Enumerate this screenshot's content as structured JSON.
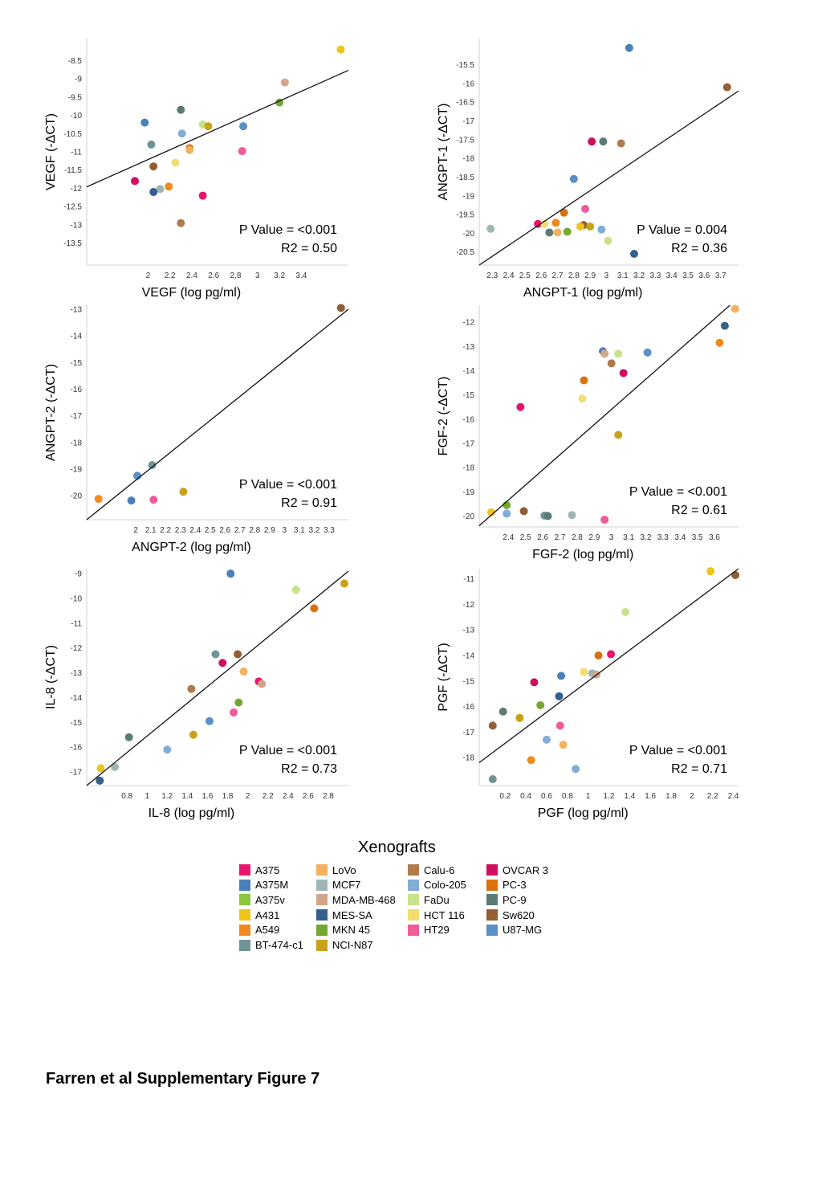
{
  "legend": {
    "title": "Xenografts",
    "items": [
      {
        "name": "A375",
        "color": "#e8156e"
      },
      {
        "name": "A375M",
        "color": "#4a80b8"
      },
      {
        "name": "A375v",
        "color": "#8cc63f"
      },
      {
        "name": "A431",
        "color": "#f0c419"
      },
      {
        "name": "A549",
        "color": "#f08a1e"
      },
      {
        "name": "BT-474-c1",
        "color": "#6e9496"
      },
      {
        "name": "LoVo",
        "color": "#f5b160"
      },
      {
        "name": "MCF7",
        "color": "#9eb7b5"
      },
      {
        "name": "MDA-MB-468",
        "color": "#d3a588"
      },
      {
        "name": "MES-SA",
        "color": "#35608e"
      },
      {
        "name": "MKN 45",
        "color": "#75a830"
      },
      {
        "name": "NCI-N87",
        "color": "#c9a21a"
      },
      {
        "name": "Calu-6",
        "color": "#b07a4a"
      },
      {
        "name": "Colo-205",
        "color": "#82acd6"
      },
      {
        "name": "FaDu",
        "color": "#c8e28a"
      },
      {
        "name": "HCT 116",
        "color": "#f3dc70"
      },
      {
        "name": "HT29",
        "color": "#ef5a9a"
      },
      {
        "name": "OVCAR 3",
        "color": "#cc0f5e"
      },
      {
        "name": "PC-3",
        "color": "#d9720e"
      },
      {
        "name": "PC-9",
        "color": "#5c7a76"
      },
      {
        "name": "Sw620",
        "color": "#935e32"
      },
      {
        "name": "U87-MG",
        "color": "#5b8fc5"
      }
    ]
  },
  "caption": "Farren et al Supplementary Figure 7",
  "chart_data": [
    {
      "type": "scatter",
      "xlabel": "VEGF (log pg/ml)",
      "ylabel": "VEGF (-ΔCT)",
      "xlim": [
        1.44,
        3.83
      ],
      "ylim": [
        -14.1,
        -7.9
      ],
      "xticks": [
        "2",
        "2.2",
        "2.4",
        "2.6",
        "2.8",
        "3",
        "3.2",
        "3.4"
      ],
      "xtick_values": [
        2,
        2.2,
        2.4,
        2.6,
        2.8,
        3,
        3.2,
        3.4
      ],
      "yticks": [
        "-8.5",
        "-9",
        "-9.5",
        "-10",
        "-10.5",
        "-11",
        "-11.5",
        "-12",
        "-12.5",
        "-13",
        "-13.5"
      ],
      "ytick_values": [
        -8.5,
        -9,
        -9.5,
        -10,
        -10.5,
        -11,
        -11.5,
        -12,
        -12.5,
        -13,
        -13.5
      ],
      "fit": {
        "x": [
          1.44,
          3.83
        ],
        "y": [
          -11.96,
          -8.77
        ]
      },
      "stats": {
        "p": "P Value = <0.001",
        "r2": "R2 = 0.50"
      },
      "points": [
        {
          "x": 3.76,
          "y": -8.2,
          "c": "#f0c419"
        },
        {
          "x": 3.25,
          "y": -9.1,
          "c": "#d3a588"
        },
        {
          "x": 3.2,
          "y": -9.65,
          "c": "#75a830"
        },
        {
          "x": 2.3,
          "y": -9.85,
          "c": "#5c7a76"
        },
        {
          "x": 1.97,
          "y": -10.2,
          "c": "#4a80b8"
        },
        {
          "x": 2.5,
          "y": -10.25,
          "c": "#c8e28a"
        },
        {
          "x": 2.55,
          "y": -10.3,
          "c": "#c9a21a"
        },
        {
          "x": 2.87,
          "y": -10.3,
          "c": "#5b8fc5"
        },
        {
          "x": 2.31,
          "y": -10.5,
          "c": "#82acd6"
        },
        {
          "x": 2.03,
          "y": -10.8,
          "c": "#6e9496"
        },
        {
          "x": 2.38,
          "y": -10.9,
          "c": "#d9720e"
        },
        {
          "x": 2.38,
          "y": -10.95,
          "c": "#f5b160"
        },
        {
          "x": 2.86,
          "y": -10.98,
          "c": "#ef5a9a"
        },
        {
          "x": 2.25,
          "y": -11.3,
          "c": "#f3dc70"
        },
        {
          "x": 2.05,
          "y": -11.4,
          "c": "#935e32"
        },
        {
          "x": 1.88,
          "y": -11.8,
          "c": "#cc0f5e"
        },
        {
          "x": 2.19,
          "y": -11.95,
          "c": "#f08a1e"
        },
        {
          "x": 2.11,
          "y": -12.02,
          "c": "#9eb7b5"
        },
        {
          "x": 2.05,
          "y": -12.1,
          "c": "#35608e"
        },
        {
          "x": 2.5,
          "y": -12.2,
          "c": "#e8156e"
        },
        {
          "x": 2.3,
          "y": -12.95,
          "c": "#b07a4a"
        }
      ]
    },
    {
      "type": "scatter",
      "xlabel": "ANGPT-1 (log pg/ml)",
      "ylabel": "ANGPT-1 (-ΔCT)",
      "xlim": [
        2.22,
        3.81
      ],
      "ylim": [
        -20.85,
        -14.8
      ],
      "xticks": [
        "2.3",
        "2.4",
        "2.5",
        "2.6",
        "2.7",
        "2.8",
        "2.9",
        "3",
        "3.1",
        "3.2",
        "3.3",
        "3.4",
        "3.5",
        "3.6",
        "3.7"
      ],
      "xtick_values": [
        2.3,
        2.4,
        2.5,
        2.6,
        2.7,
        2.8,
        2.9,
        3.0,
        3.1,
        3.2,
        3.3,
        3.4,
        3.5,
        3.6,
        3.7
      ],
      "yticks": [
        "-15.5",
        "-16",
        "-16.5",
        "-17",
        "-17.5",
        "-18",
        "-18.5",
        "-19",
        "-19.5",
        "-20",
        "-20.5"
      ],
      "ytick_values": [
        -15.5,
        -16,
        -16.5,
        -17,
        -17.5,
        -18,
        -18.5,
        -19,
        -19.5,
        -20,
        -20.5
      ],
      "fit": {
        "x": [
          2.22,
          3.81
        ],
        "y": [
          -20.85,
          -16.2
        ]
      },
      "stats": {
        "p": "P Value = 0.004",
        "r2": "R2 = 0.36"
      },
      "points": [
        {
          "x": 3.14,
          "y": -15.05,
          "c": "#4a80b8"
        },
        {
          "x": 3.74,
          "y": -16.1,
          "c": "#935e32"
        },
        {
          "x": 2.91,
          "y": -17.55,
          "c": "#cc0f5e"
        },
        {
          "x": 2.98,
          "y": -17.55,
          "c": "#5c7a76"
        },
        {
          "x": 3.09,
          "y": -17.6,
          "c": "#b07a4a"
        },
        {
          "x": 2.8,
          "y": -18.55,
          "c": "#5b8fc5"
        },
        {
          "x": 2.87,
          "y": -19.35,
          "c": "#ef5a9a"
        },
        {
          "x": 2.74,
          "y": -19.45,
          "c": "#d9720e"
        },
        {
          "x": 2.58,
          "y": -19.75,
          "c": "#e8156e"
        },
        {
          "x": 2.62,
          "y": -19.75,
          "c": "#f3dc70"
        },
        {
          "x": 2.69,
          "y": -19.72,
          "c": "#f08a1e"
        },
        {
          "x": 2.86,
          "y": -19.78,
          "c": "#935e32"
        },
        {
          "x": 2.84,
          "y": -19.82,
          "c": "#f0c419"
        },
        {
          "x": 2.9,
          "y": -19.82,
          "c": "#c9a21a"
        },
        {
          "x": 2.29,
          "y": -19.88,
          "c": "#9eb7b5"
        },
        {
          "x": 2.97,
          "y": -19.9,
          "c": "#82acd6"
        },
        {
          "x": 2.65,
          "y": -19.98,
          "c": "#5c7a76"
        },
        {
          "x": 2.7,
          "y": -19.98,
          "c": "#f5b160"
        },
        {
          "x": 2.76,
          "y": -19.96,
          "c": "#75a830"
        },
        {
          "x": 3.01,
          "y": -20.2,
          "c": "#c8e28a"
        },
        {
          "x": 3.17,
          "y": -20.55,
          "c": "#35608e"
        }
      ]
    },
    {
      "type": "scatter",
      "xlabel": "ANGPT-2 (log pg/ml)",
      "ylabel": "ANGPT-2 (-ΔCT)",
      "xlim": [
        1.67,
        3.43
      ],
      "ylim": [
        -20.9,
        -12.85
      ],
      "xticks": [
        "2",
        "2.1",
        "2.2",
        "2.3",
        "2.4",
        "2.5",
        "2.6",
        "2.7",
        "2.8",
        "2.9",
        "3",
        "3.1",
        "3.2",
        "3.3"
      ],
      "xtick_values": [
        2.0,
        2.1,
        2.2,
        2.3,
        2.4,
        2.5,
        2.6,
        2.7,
        2.8,
        2.9,
        3.0,
        3.1,
        3.2,
        3.3
      ],
      "yticks": [
        "-13",
        "-14",
        "-15",
        "-16",
        "-17",
        "-18",
        "-19",
        "-20"
      ],
      "ytick_values": [
        -13,
        -14,
        -15,
        -16,
        -17,
        -18,
        -19,
        -20
      ],
      "fit": {
        "x": [
          1.67,
          3.43
        ],
        "y": [
          -20.9,
          -13.0
        ]
      },
      "stats": {
        "p": "P Value = <0.001",
        "r2": "R2 = 0.91"
      },
      "points": [
        {
          "x": 3.38,
          "y": -12.95,
          "c": "#935e32"
        },
        {
          "x": 2.11,
          "y": -18.85,
          "c": "#6e9496"
        },
        {
          "x": 2.01,
          "y": -19.25,
          "c": "#5b8fc5"
        },
        {
          "x": 2.32,
          "y": -19.85,
          "c": "#c9a21a"
        },
        {
          "x": 1.75,
          "y": -20.12,
          "c": "#f08a1e"
        },
        {
          "x": 1.97,
          "y": -20.18,
          "c": "#4a80b8"
        },
        {
          "x": 2.12,
          "y": -20.15,
          "c": "#ef5a9a"
        }
      ]
    },
    {
      "type": "scatter",
      "xlabel": "FGF-2 (log pg/ml)",
      "ylabel": "FGF-2 (-ΔCT)",
      "xlim": [
        2.23,
        3.74
      ],
      "ylim": [
        -20.45,
        -11.3
      ],
      "xticks": [
        "2.4",
        "2.5",
        "2.6",
        "2.7",
        "2.8",
        "2.9",
        "3",
        "3.1",
        "3.2",
        "3.3",
        "3.4",
        "3.5",
        "3.6"
      ],
      "xtick_values": [
        2.4,
        2.5,
        2.6,
        2.7,
        2.8,
        2.9,
        3.0,
        3.1,
        3.2,
        3.3,
        3.4,
        3.5,
        3.6
      ],
      "yticks": [
        "-12",
        "-13",
        "-14",
        "-15",
        "-16",
        "-17",
        "-18",
        "-19",
        "-20"
      ],
      "ytick_values": [
        -12,
        -13,
        -14,
        -15,
        -16,
        -17,
        -18,
        -19,
        -20
      ],
      "fit": {
        "x": [
          2.23,
          3.69
        ],
        "y": [
          -20.4,
          -11.3
        ]
      },
      "stats": {
        "p": "P Value = <0.001",
        "r2": "R2 = 0.61"
      },
      "points": [
        {
          "x": 3.72,
          "y": -11.45,
          "c": "#f5b160"
        },
        {
          "x": 3.66,
          "y": -12.15,
          "c": "#35608e"
        },
        {
          "x": 3.63,
          "y": -12.85,
          "c": "#f08a1e"
        },
        {
          "x": 2.95,
          "y": -13.2,
          "c": "#4a80b8"
        },
        {
          "x": 2.96,
          "y": -13.3,
          "c": "#d3a588"
        },
        {
          "x": 3.04,
          "y": -13.3,
          "c": "#c8e28a"
        },
        {
          "x": 3.21,
          "y": -13.25,
          "c": "#5b8fc5"
        },
        {
          "x": 3.0,
          "y": -13.7,
          "c": "#b07a4a"
        },
        {
          "x": 3.07,
          "y": -14.1,
          "c": "#cc0f5e"
        },
        {
          "x": 2.84,
          "y": -14.4,
          "c": "#d9720e"
        },
        {
          "x": 2.83,
          "y": -15.15,
          "c": "#f3dc70"
        },
        {
          "x": 2.47,
          "y": -15.5,
          "c": "#e8156e"
        },
        {
          "x": 3.04,
          "y": -16.65,
          "c": "#c9a21a"
        },
        {
          "x": 2.39,
          "y": -19.55,
          "c": "#75a830"
        },
        {
          "x": 2.3,
          "y": -19.85,
          "c": "#f0c419"
        },
        {
          "x": 2.39,
          "y": -19.9,
          "c": "#82acd6"
        },
        {
          "x": 2.49,
          "y": -19.8,
          "c": "#935e32"
        },
        {
          "x": 2.61,
          "y": -19.98,
          "c": "#6e9496"
        },
        {
          "x": 2.63,
          "y": -20.0,
          "c": "#5c7a76"
        },
        {
          "x": 2.77,
          "y": -19.96,
          "c": "#9eb7b5"
        },
        {
          "x": 2.96,
          "y": -20.15,
          "c": "#ef5a9a"
        }
      ]
    },
    {
      "type": "scatter",
      "xlabel": "IL-8 (log pg/ml)",
      "ylabel": "IL-8 (-ΔCT)",
      "xlim": [
        0.4,
        3.0
      ],
      "ylim": [
        -17.55,
        -8.8
      ],
      "xticks": [
        "0.8",
        "1",
        "1.2",
        "1.4",
        "1.6",
        "1.8",
        "2",
        "2.2",
        "2.4",
        "2.6",
        "2.8"
      ],
      "xtick_values": [
        0.8,
        1.0,
        1.2,
        1.4,
        1.6,
        1.8,
        2.0,
        2.2,
        2.4,
        2.6,
        2.8
      ],
      "yticks": [
        "-9",
        "-10",
        "-11",
        "-12",
        "-13",
        "-14",
        "-15",
        "-16",
        "-17"
      ],
      "ytick_values": [
        -9,
        -10,
        -11,
        -12,
        -13,
        -14,
        -15,
        -16,
        -17
      ],
      "fit": {
        "x": [
          0.4,
          3.0
        ],
        "y": [
          -17.55,
          -8.9
        ]
      },
      "stats": {
        "p": "P Value = <0.001",
        "r2": "R2 = 0.73"
      },
      "points": [
        {
          "x": 1.83,
          "y": -9.0,
          "c": "#4a80b8"
        },
        {
          "x": 2.48,
          "y": -9.65,
          "c": "#c8e28a"
        },
        {
          "x": 2.96,
          "y": -9.4,
          "c": "#c9a21a"
        },
        {
          "x": 2.66,
          "y": -10.4,
          "c": "#d9720e"
        },
        {
          "x": 1.68,
          "y": -12.25,
          "c": "#6e9496"
        },
        {
          "x": 1.9,
          "y": -12.25,
          "c": "#935e32"
        },
        {
          "x": 1.75,
          "y": -12.6,
          "c": "#cc0f5e"
        },
        {
          "x": 1.96,
          "y": -12.95,
          "c": "#f5b160"
        },
        {
          "x": 2.11,
          "y": -13.35,
          "c": "#e8156e"
        },
        {
          "x": 2.14,
          "y": -13.45,
          "c": "#d3a588"
        },
        {
          "x": 1.44,
          "y": -13.65,
          "c": "#b07a4a"
        },
        {
          "x": 1.91,
          "y": -14.2,
          "c": "#75a830"
        },
        {
          "x": 1.86,
          "y": -14.6,
          "c": "#ef5a9a"
        },
        {
          "x": 1.62,
          "y": -14.95,
          "c": "#5b8fc5"
        },
        {
          "x": 1.46,
          "y": -15.5,
          "c": "#c9a21a"
        },
        {
          "x": 0.82,
          "y": -15.6,
          "c": "#5c7a76"
        },
        {
          "x": 1.2,
          "y": -16.1,
          "c": "#82acd6"
        },
        {
          "x": 0.54,
          "y": -16.85,
          "c": "#f0c419"
        },
        {
          "x": 0.68,
          "y": -16.8,
          "c": "#9eb7b5"
        },
        {
          "x": 0.53,
          "y": -17.35,
          "c": "#35608e"
        }
      ]
    },
    {
      "type": "scatter",
      "xlabel": "PGF (log pg/ml)",
      "ylabel": "PGF (-ΔCT)",
      "xlim": [
        -0.05,
        2.45
      ],
      "ylim": [
        -19.1,
        -10.6
      ],
      "xticks": [
        "0.2",
        "0.4",
        "0.6",
        "0.8",
        "1",
        "1.2",
        "1.4",
        "1.6",
        "1.8",
        "2",
        "2.2",
        "2.4"
      ],
      "xtick_values": [
        0.2,
        0.4,
        0.6,
        0.8,
        1.0,
        1.2,
        1.4,
        1.6,
        1.8,
        2.0,
        2.2,
        2.4
      ],
      "yticks": [
        "-11",
        "-12",
        "-13",
        "-14",
        "-15",
        "-16",
        "-17",
        "-18"
      ],
      "ytick_values": [
        -11,
        -12,
        -13,
        -14,
        -15,
        -16,
        -17,
        -18
      ],
      "fit": {
        "x": [
          -0.05,
          2.45
        ],
        "y": [
          -18.2,
          -10.6
        ]
      },
      "stats": {
        "p": "P Value = <0.001",
        "r2": "R2 = 0.71"
      },
      "points": [
        {
          "x": 2.18,
          "y": -10.7,
          "c": "#f0c419"
        },
        {
          "x": 2.42,
          "y": -10.85,
          "c": "#935e32"
        },
        {
          "x": 1.36,
          "y": -12.3,
          "c": "#c8e28a"
        },
        {
          "x": 1.22,
          "y": -13.95,
          "c": "#e8156e"
        },
        {
          "x": 1.1,
          "y": -14.0,
          "c": "#d9720e"
        },
        {
          "x": 0.96,
          "y": -14.65,
          "c": "#f3dc70"
        },
        {
          "x": 1.04,
          "y": -14.7,
          "c": "#9eb7b5"
        },
        {
          "x": 1.08,
          "y": -14.75,
          "c": "#d3a588"
        },
        {
          "x": 0.74,
          "y": -14.8,
          "c": "#4a80b8"
        },
        {
          "x": 0.48,
          "y": -15.05,
          "c": "#cc0f5e"
        },
        {
          "x": 0.72,
          "y": -15.6,
          "c": "#35608e"
        },
        {
          "x": 0.54,
          "y": -15.95,
          "c": "#75a830"
        },
        {
          "x": 0.18,
          "y": -16.2,
          "c": "#5c7a76"
        },
        {
          "x": 0.34,
          "y": -16.45,
          "c": "#c9a21a"
        },
        {
          "x": 0.08,
          "y": -16.75,
          "c": "#935e32"
        },
        {
          "x": 0.73,
          "y": -16.75,
          "c": "#ef5a9a"
        },
        {
          "x": 0.6,
          "y": -17.3,
          "c": "#82acd6"
        },
        {
          "x": 0.76,
          "y": -17.5,
          "c": "#f5b160"
        },
        {
          "x": 0.45,
          "y": -18.1,
          "c": "#f08a1e"
        },
        {
          "x": 0.88,
          "y": -18.45,
          "c": "#82acd6"
        },
        {
          "x": 0.08,
          "y": -18.85,
          "c": "#6e9496"
        }
      ]
    }
  ]
}
